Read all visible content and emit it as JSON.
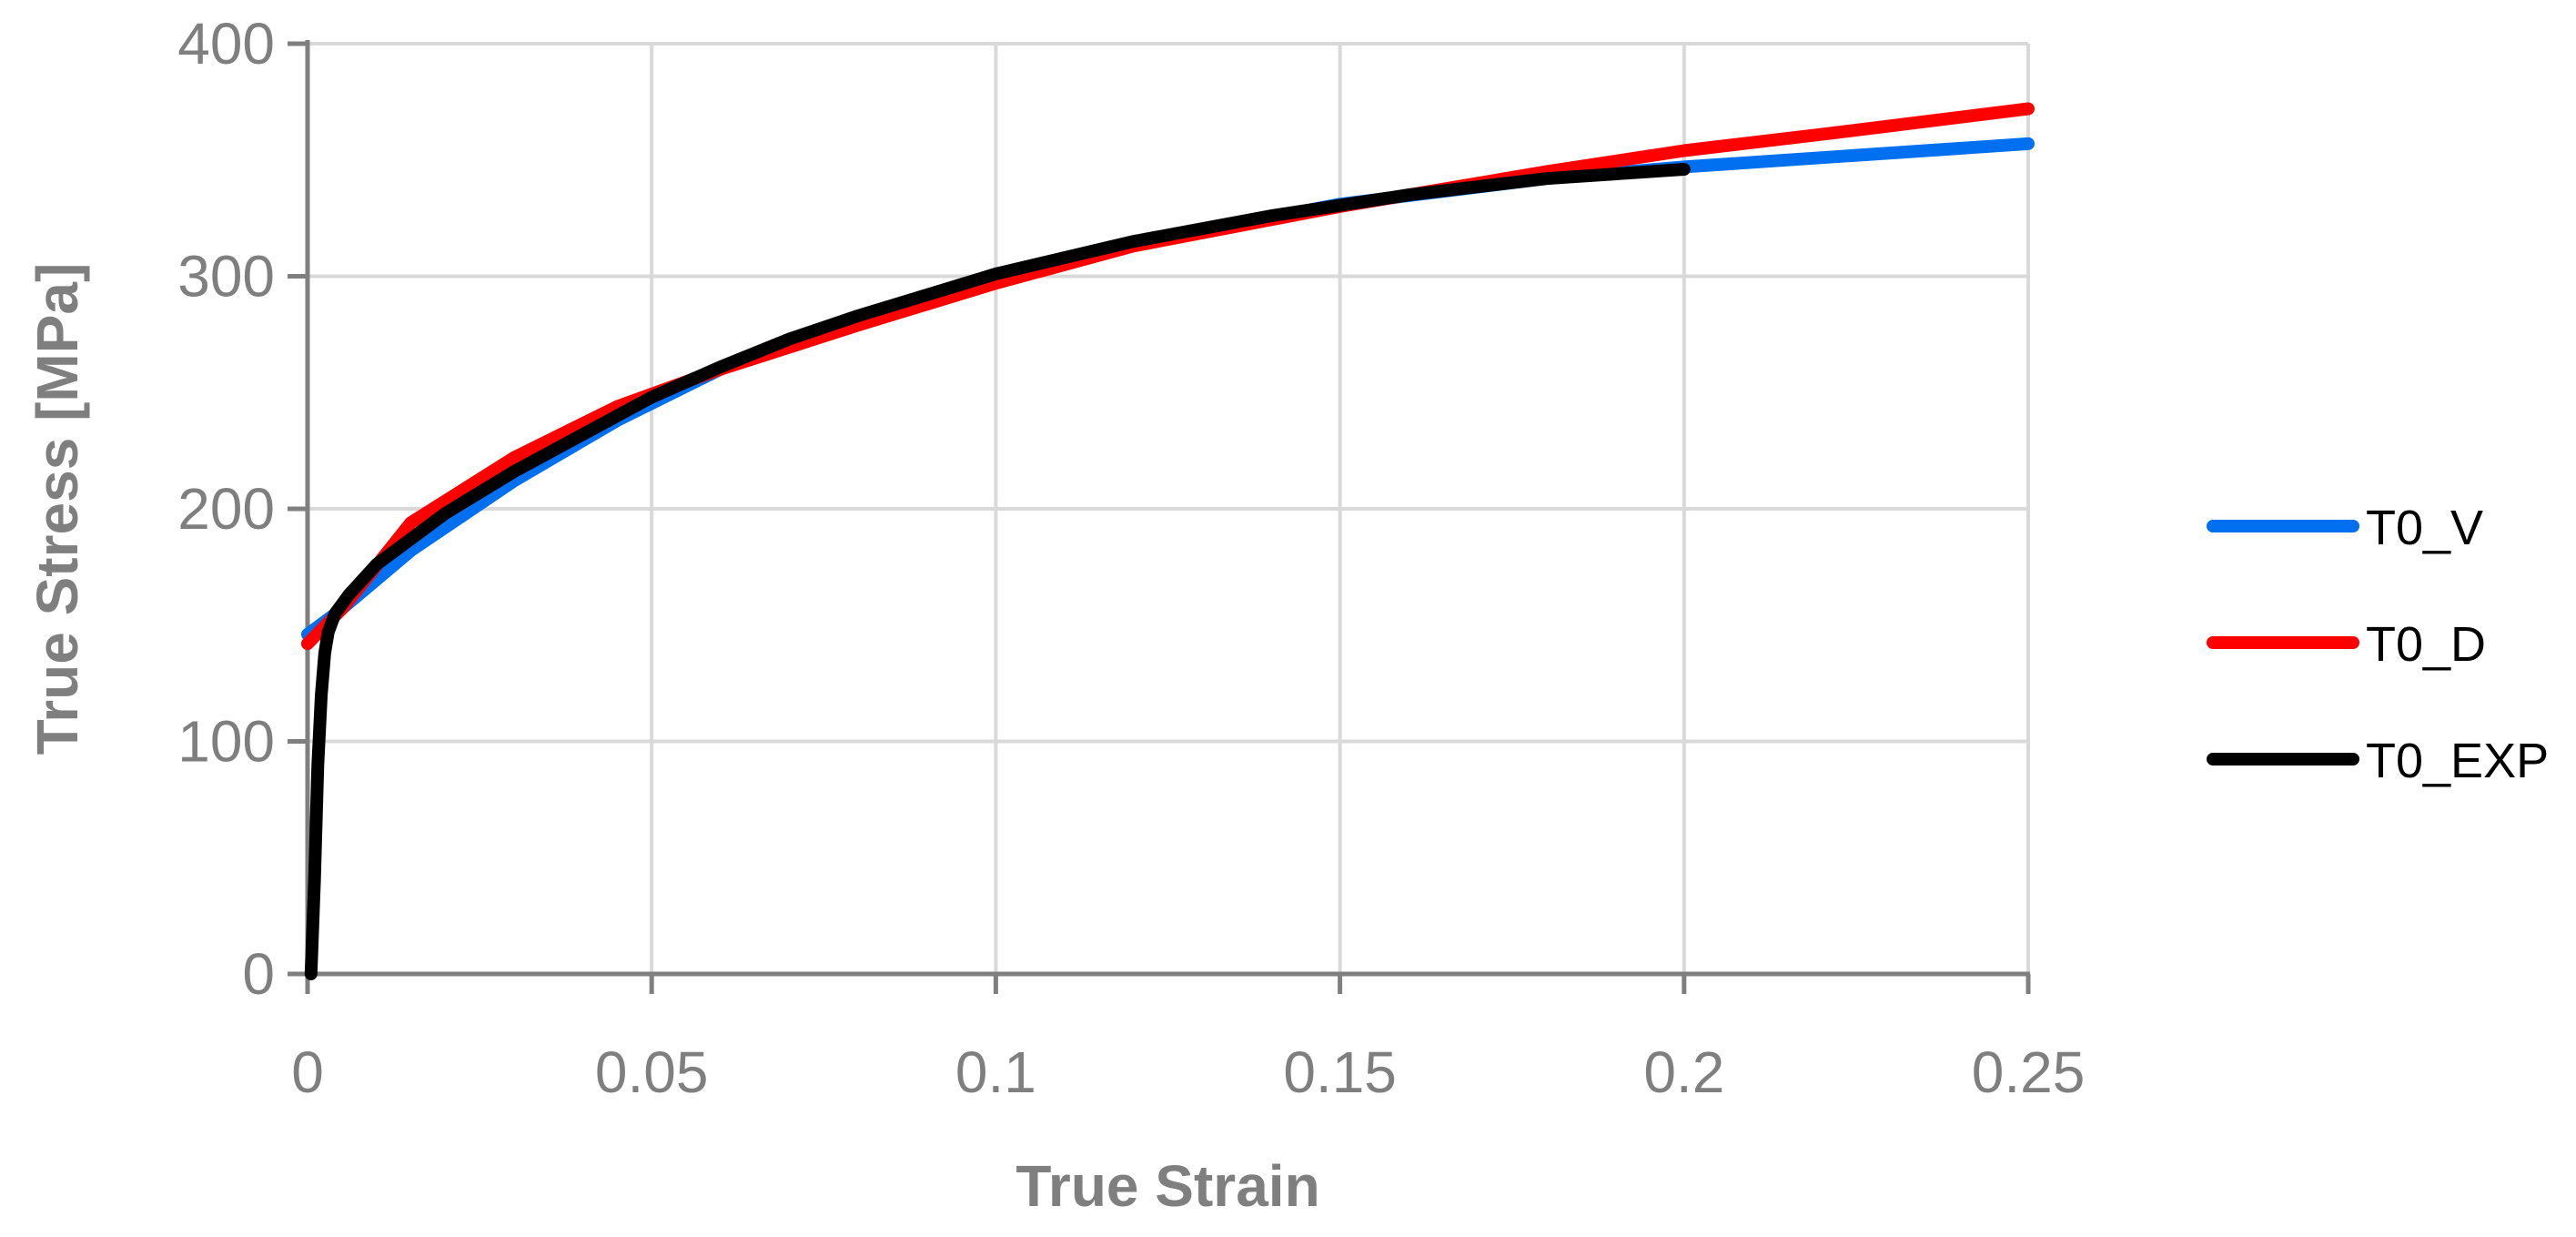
{
  "chart_data": {
    "type": "line",
    "title": "",
    "xlabel": "True Strain",
    "ylabel": "True Stress [MPa]",
    "xlim": [
      0,
      0.25
    ],
    "ylim": [
      0,
      400
    ],
    "x_ticks": [
      0,
      0.05,
      0.1,
      0.15,
      0.2,
      0.25
    ],
    "x_tick_labels": [
      "0",
      "0.05",
      "0.1",
      "0.15",
      "0.2",
      "0.25"
    ],
    "y_ticks": [
      0,
      100,
      200,
      300,
      400
    ],
    "y_tick_labels": [
      "0",
      "100",
      "200",
      "300",
      "400"
    ],
    "grid": true,
    "legend_position": "right",
    "series": [
      {
        "name": "T0_V",
        "color": "#0070f0",
        "points": [
          [
            0,
            146
          ],
          [
            0.005,
            157
          ],
          [
            0.015,
            182
          ],
          [
            0.03,
            212
          ],
          [
            0.045,
            238
          ],
          [
            0.06,
            260
          ],
          [
            0.08,
            282
          ],
          [
            0.1,
            301
          ],
          [
            0.12,
            314
          ],
          [
            0.15,
            331
          ],
          [
            0.18,
            342
          ],
          [
            0.2,
            347
          ],
          [
            0.22,
            351
          ],
          [
            0.25,
            357
          ]
        ]
      },
      {
        "name": "T0_D",
        "color": "#ff0000",
        "points": [
          [
            0,
            142
          ],
          [
            0.005,
            157
          ],
          [
            0.015,
            194
          ],
          [
            0.03,
            222
          ],
          [
            0.045,
            244
          ],
          [
            0.06,
            260
          ],
          [
            0.08,
            279
          ],
          [
            0.1,
            297
          ],
          [
            0.12,
            313
          ],
          [
            0.15,
            330
          ],
          [
            0.18,
            345
          ],
          [
            0.2,
            354
          ],
          [
            0.22,
            361
          ],
          [
            0.25,
            372
          ]
        ]
      },
      {
        "name": "T0_EXP",
        "color": "#000000",
        "points": [
          [
            0.0005,
            0
          ],
          [
            0.001,
            40
          ],
          [
            0.0015,
            90
          ],
          [
            0.002,
            120
          ],
          [
            0.0025,
            138
          ],
          [
            0.003,
            147
          ],
          [
            0.004,
            155
          ],
          [
            0.006,
            163
          ],
          [
            0.01,
            176
          ],
          [
            0.02,
            198
          ],
          [
            0.03,
            216
          ],
          [
            0.04,
            232
          ],
          [
            0.05,
            248
          ],
          [
            0.06,
            261
          ],
          [
            0.07,
            273
          ],
          [
            0.08,
            283
          ],
          [
            0.09,
            292
          ],
          [
            0.1,
            301
          ],
          [
            0.12,
            315
          ],
          [
            0.14,
            326
          ],
          [
            0.16,
            335
          ],
          [
            0.18,
            342
          ],
          [
            0.2,
            346
          ]
        ]
      }
    ]
  }
}
